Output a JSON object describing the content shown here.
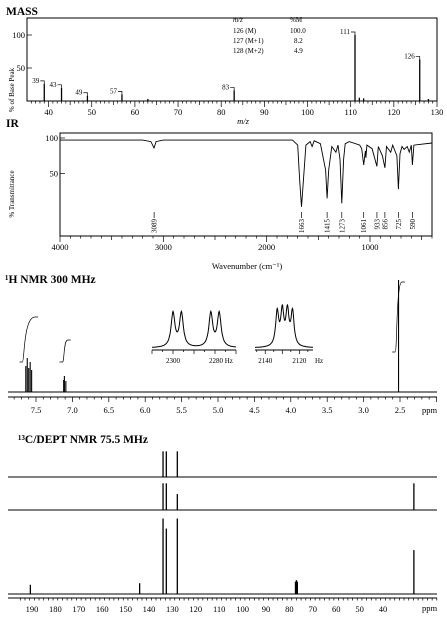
{
  "chart_data": [
    {
      "type": "bar",
      "panel": "mass",
      "title": "MASS",
      "xlabel": "m/z",
      "ylabel": "% of Base Peak",
      "xlim": [
        35,
        130
      ],
      "ylim": [
        0,
        100
      ],
      "xticks": [
        40,
        50,
        60,
        70,
        80,
        90,
        100,
        110,
        120,
        130
      ],
      "yticks": [
        50,
        100
      ],
      "peaks": [
        {
          "x": 39,
          "y": 26,
          "label": "39"
        },
        {
          "x": 43,
          "y": 20,
          "label": "43"
        },
        {
          "x": 49,
          "y": 8,
          "label": "49"
        },
        {
          "x": 57,
          "y": 10,
          "label": "57"
        },
        {
          "x": 83,
          "y": 16,
          "label": "83"
        },
        {
          "x": 111,
          "y": 100,
          "label": "111"
        },
        {
          "x": 126,
          "y": 63,
          "label": "126"
        },
        {
          "x": 113,
          "y": 4,
          "label": ""
        },
        {
          "x": 112,
          "y": 5,
          "label": ""
        },
        {
          "x": 128,
          "y": 3,
          "label": ""
        },
        {
          "x": 63,
          "y": 3,
          "label": ""
        }
      ],
      "table": {
        "headers": [
          "m/z",
          "%M"
        ],
        "rows": [
          [
            "126 (M)",
            "100.0"
          ],
          [
            "127 (M+1)",
            "8.2"
          ],
          [
            "128 (M+2)",
            "4.9"
          ]
        ]
      }
    },
    {
      "type": "line",
      "panel": "ir",
      "title": "IR",
      "xlabel": "Wavenumber (cm⁻¹)",
      "ylabel": "% Transmittance",
      "xlim": [
        4000,
        400
      ],
      "ylim": [
        0,
        100
      ],
      "xticks": [
        4000,
        3000,
        2000,
        1000
      ],
      "yticks": [
        50,
        100
      ],
      "points": [
        [
          4000,
          97
        ],
        [
          3200,
          97
        ],
        [
          3120,
          95
        ],
        [
          3090,
          86
        ],
        [
          3070,
          95
        ],
        [
          3000,
          97
        ],
        [
          1750,
          97
        ],
        [
          1700,
          90
        ],
        [
          1680,
          40
        ],
        [
          1663,
          3
        ],
        [
          1645,
          40
        ],
        [
          1620,
          90
        ],
        [
          1580,
          95
        ],
        [
          1560,
          88
        ],
        [
          1540,
          96
        ],
        [
          1480,
          92
        ],
        [
          1450,
          70
        ],
        [
          1430,
          55
        ],
        [
          1415,
          15
        ],
        [
          1400,
          55
        ],
        [
          1370,
          88
        ],
        [
          1330,
          80
        ],
        [
          1310,
          90
        ],
        [
          1290,
          70
        ],
        [
          1273,
          8
        ],
        [
          1255,
          70
        ],
        [
          1240,
          92
        ],
        [
          1200,
          95
        ],
        [
          1100,
          90
        ],
        [
          1080,
          85
        ],
        [
          1061,
          62
        ],
        [
          1045,
          82
        ],
        [
          1040,
          72
        ],
        [
          1030,
          90
        ],
        [
          980,
          85
        ],
        [
          933,
          60
        ],
        [
          920,
          88
        ],
        [
          880,
          75
        ],
        [
          856,
          58
        ],
        [
          840,
          88
        ],
        [
          800,
          80
        ],
        [
          780,
          90
        ],
        [
          740,
          75
        ],
        [
          725,
          28
        ],
        [
          710,
          78
        ],
        [
          690,
          88
        ],
        [
          670,
          84
        ],
        [
          640,
          88
        ],
        [
          620,
          80
        ],
        [
          600,
          90
        ],
        [
          590,
          62
        ],
        [
          575,
          90
        ],
        [
          400,
          93
        ]
      ],
      "annotations": [
        {
          "x": 3089,
          "label": "3089"
        },
        {
          "x": 1663,
          "label": "1663"
        },
        {
          "x": 1415,
          "label": "1415"
        },
        {
          "x": 1273,
          "label": "1273"
        },
        {
          "x": 1061,
          "label": "1061"
        },
        {
          "x": 933,
          "label": "933"
        },
        {
          "x": 856,
          "label": "856"
        },
        {
          "x": 725,
          "label": "725"
        },
        {
          "x": 590,
          "label": "590"
        }
      ]
    },
    {
      "type": "line",
      "panel": "hnmr",
      "title": "¹H NMR 300 MHz",
      "xlabel": "ppm",
      "xlim": [
        7.9,
        2.1
      ],
      "xticks": [
        7.5,
        7.0,
        6.5,
        6.0,
        5.5,
        5.0,
        4.5,
        4.0,
        3.5,
        3.0,
        2.5
      ],
      "peaks": [
        {
          "x": 7.64,
          "h": 26
        },
        {
          "x": 7.62,
          "h": 34
        },
        {
          "x": 7.6,
          "h": 24
        },
        {
          "x": 7.58,
          "h": 30
        },
        {
          "x": 7.56,
          "h": 22
        },
        {
          "x": 7.12,
          "h": 12
        },
        {
          "x": 7.11,
          "h": 16
        },
        {
          "x": 7.09,
          "h": 11
        },
        {
          "x": 2.52,
          "h": 112
        }
      ],
      "integrals": [
        {
          "from": 7.7,
          "to": 7.5,
          "rise": 45
        },
        {
          "from": 7.15,
          "to": 7.05,
          "rise": 22
        },
        {
          "from": 2.58,
          "to": 2.46,
          "rise": 70
        }
      ],
      "insets": [
        {
          "ticks": [
            "2300",
            "2280 Hz"
          ],
          "hz_range": [
            2310,
            2270
          ],
          "lines": [
            2300,
            2296,
            2282,
            2278
          ]
        },
        {
          "ticks": [
            "2140",
            "2120",
            "Hz"
          ],
          "hz_range": [
            2146,
            2112
          ],
          "lines": [
            2133,
            2130,
            2127,
            2124
          ]
        }
      ]
    },
    {
      "type": "bar",
      "panel": "cnmr",
      "title": "¹³C/DEPT NMR 75.5 MHz",
      "xlabel": "ppm",
      "xlim": [
        195,
        5
      ],
      "xticks": [
        190,
        180,
        170,
        160,
        150,
        140,
        130,
        120,
        110,
        100,
        90,
        80,
        70,
        60,
        50,
        40
      ],
      "rows": [
        {
          "peaks": [
            {
              "x": 134.0,
              "h": 0.95
            },
            {
              "x": 132.6,
              "h": 0.95
            },
            {
              "x": 127.9,
              "h": 0.95
            }
          ]
        },
        {
          "peaks": [
            {
              "x": 134.0,
              "h": 0.92
            },
            {
              "x": 132.6,
              "h": 0.92
            },
            {
              "x": 127.9,
              "h": 0.55
            },
            {
              "x": 26.8,
              "h": 0.92
            }
          ]
        },
        {
          "peaks": [
            {
              "x": 190.7,
              "h": 0.12
            },
            {
              "x": 144.0,
              "h": 0.14
            },
            {
              "x": 134.0,
              "h": 0.98
            },
            {
              "x": 132.6,
              "h": 0.85
            },
            {
              "x": 127.9,
              "h": 0.98
            },
            {
              "x": 77.4,
              "h": 0.16
            },
            {
              "x": 77.0,
              "h": 0.18
            },
            {
              "x": 76.6,
              "h": 0.16
            },
            {
              "x": 26.8,
              "h": 0.57
            }
          ]
        }
      ]
    }
  ]
}
